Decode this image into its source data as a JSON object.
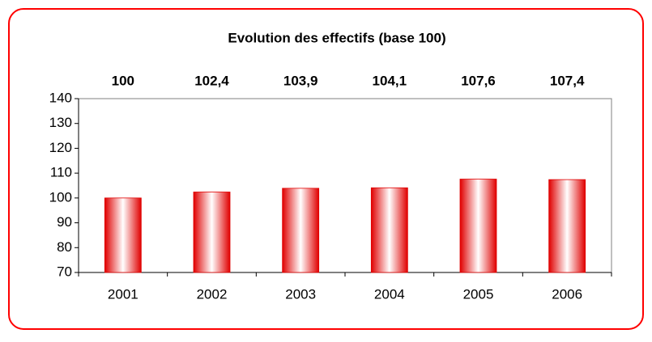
{
  "chart_data": {
    "type": "bar",
    "title": "Evolution des effectifs (base 100)",
    "categories": [
      "2001",
      "2002",
      "2003",
      "2004",
      "2005",
      "2006"
    ],
    "values": [
      100,
      102.4,
      103.9,
      104.1,
      107.6,
      107.4
    ],
    "value_labels": [
      "100",
      "102,4",
      "103,9",
      "104,1",
      "107,6",
      "107,4"
    ],
    "color": "#e00000",
    "ylim": [
      70,
      140
    ],
    "yticks": [
      70,
      80,
      90,
      100,
      110,
      120,
      130,
      140
    ],
    "grid": false
  }
}
